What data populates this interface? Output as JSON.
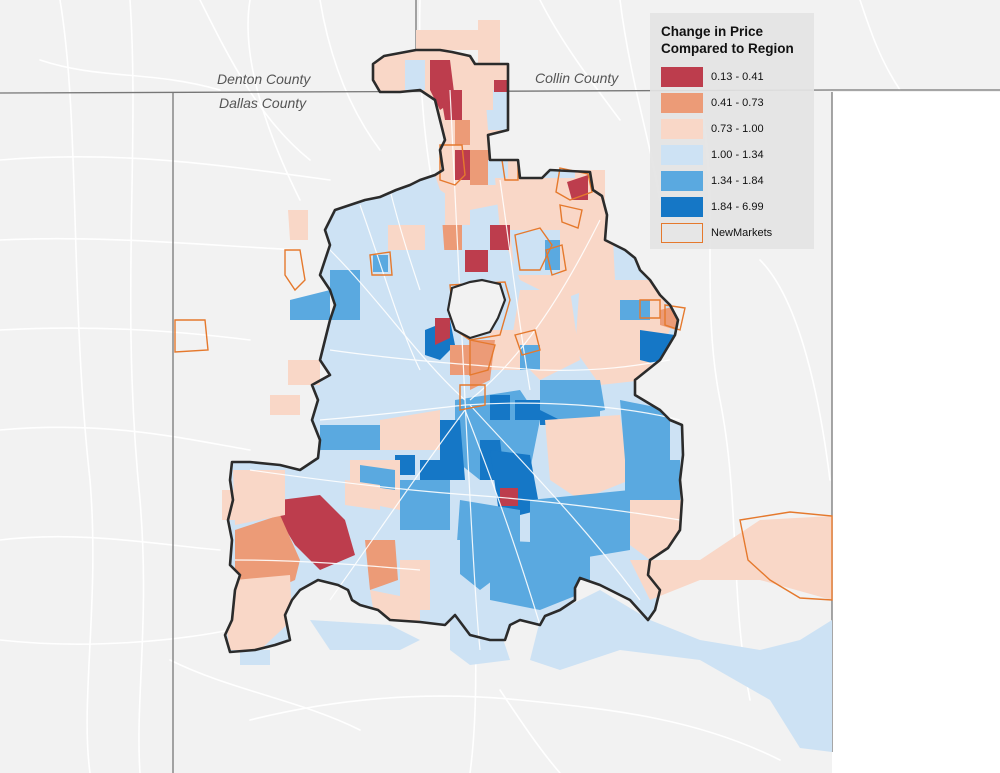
{
  "counties": {
    "denton": "Denton County",
    "dallas": "Dallas County",
    "collin": "Collin County"
  },
  "legend": {
    "title_line1": "Change in Price",
    "title_line2": "Compared to Region",
    "classes": [
      {
        "label": "0.13 - 0.41",
        "color": "#bd3d4d"
      },
      {
        "label": "0.41 - 0.73",
        "color": "#ec9b77"
      },
      {
        "label": "0.73 - 1.00",
        "color": "#f9d7c7"
      },
      {
        "label": "1.00 - 1.34",
        "color": "#cde2f4"
      },
      {
        "label": "1.34 - 1.84",
        "color": "#5aa9e0"
      },
      {
        "label": "1.84 - 6.99",
        "color": "#1577c6"
      }
    ],
    "new_markets": {
      "label": "NewMarkets",
      "outline_color": "#e5792d"
    }
  },
  "colors": {
    "background": "#f2f2f2",
    "road": "#ffffff",
    "county_line": "#777777",
    "city_boundary": "#2b2b2b"
  }
}
